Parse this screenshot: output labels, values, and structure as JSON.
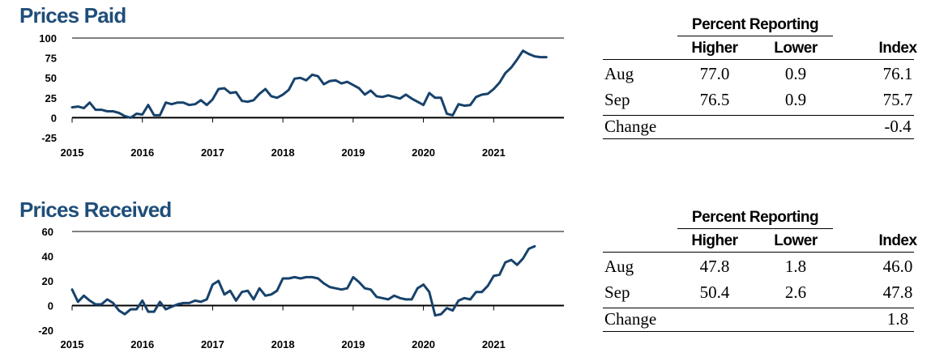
{
  "charts": [
    {
      "id": "paid",
      "title": "Prices Paid",
      "table": {
        "group_heading": "Percent Reporting",
        "col_higher": "Higher",
        "col_lower": "Lower",
        "col_index": "Index",
        "rows": [
          {
            "label": "Aug",
            "higher": "77.0",
            "lower": "0.9",
            "index": "76.1"
          },
          {
            "label": "Sep",
            "higher": "76.5",
            "lower": "0.9",
            "index": "75.7"
          }
        ],
        "change_label": "Change",
        "change_index": "-0.4"
      }
    },
    {
      "id": "received",
      "title": "Prices Received",
      "table": {
        "group_heading": "Percent Reporting",
        "col_higher": "Higher",
        "col_lower": "Lower",
        "col_index": "Index",
        "rows": [
          {
            "label": "Aug",
            "higher": "47.8",
            "lower": "1.8",
            "index": "46.0"
          },
          {
            "label": "Sep",
            "higher": "50.4",
            "lower": "2.6",
            "index": "47.8"
          }
        ],
        "change_label": "Change",
        "change_index": "1.8"
      }
    }
  ],
  "chart_data": [
    {
      "type": "line",
      "title": "Prices Paid",
      "x_start": "2015-01",
      "x_frequency": "monthly",
      "x_ticks": [
        "2015",
        "2016",
        "2017",
        "2018",
        "2019",
        "2020",
        "2021"
      ],
      "y_ticks": [
        100,
        75,
        50,
        25,
        0,
        -25
      ],
      "ylim": [
        -25,
        100
      ],
      "xlim": [
        "2015-01",
        "2021-12"
      ],
      "line_color": "#17426b",
      "zero_line": true,
      "gridlines": [
        100,
        0
      ],
      "series": [
        {
          "values": [
            13,
            14,
            12,
            19,
            10,
            10,
            8,
            8,
            6,
            2,
            0,
            5,
            4,
            16,
            3,
            3,
            19,
            17,
            19,
            19,
            16,
            17,
            22,
            16,
            23,
            36,
            37,
            31,
            32,
            21,
            20,
            22,
            30,
            36,
            27,
            25,
            29,
            35,
            49,
            50,
            47,
            54,
            52,
            42,
            46,
            47,
            43,
            45,
            41,
            37,
            29,
            34,
            27,
            26,
            28,
            26,
            24,
            29,
            24,
            20,
            16,
            31,
            25,
            25,
            5,
            3,
            17,
            15,
            16,
            26,
            29,
            30,
            36,
            44,
            56,
            63,
            73,
            84,
            80,
            77,
            76,
            76
          ]
        }
      ]
    },
    {
      "type": "line",
      "title": "Prices Received",
      "x_start": "2015-01",
      "x_frequency": "monthly",
      "x_ticks": [
        "2015",
        "2016",
        "2017",
        "2018",
        "2019",
        "2020",
        "2021"
      ],
      "y_ticks": [
        60,
        40,
        20,
        0,
        -20
      ],
      "ylim": [
        -20,
        60
      ],
      "xlim": [
        "2015-01",
        "2021-12"
      ],
      "line_color": "#17426b",
      "zero_line": true,
      "gridlines": [
        60,
        0
      ],
      "series": [
        {
          "values": [
            13,
            3,
            8,
            4,
            1,
            1,
            5,
            2,
            -4,
            -7,
            -3,
            -3,
            4,
            -5,
            -5,
            3,
            -3,
            -1,
            1,
            2,
            2,
            4,
            3,
            5,
            17,
            20,
            9,
            12,
            4,
            11,
            12,
            5,
            14,
            8,
            9,
            12,
            22,
            22,
            23,
            22,
            23,
            23,
            22,
            18,
            15,
            14,
            13,
            14,
            23,
            19,
            14,
            13,
            7,
            6,
            5,
            8,
            6,
            5,
            5,
            14,
            17,
            11,
            -8,
            -7,
            -2,
            -4,
            4,
            6,
            5,
            11,
            11,
            16,
            24,
            25,
            35,
            37,
            33,
            38,
            46,
            48
          ]
        }
      ]
    }
  ]
}
